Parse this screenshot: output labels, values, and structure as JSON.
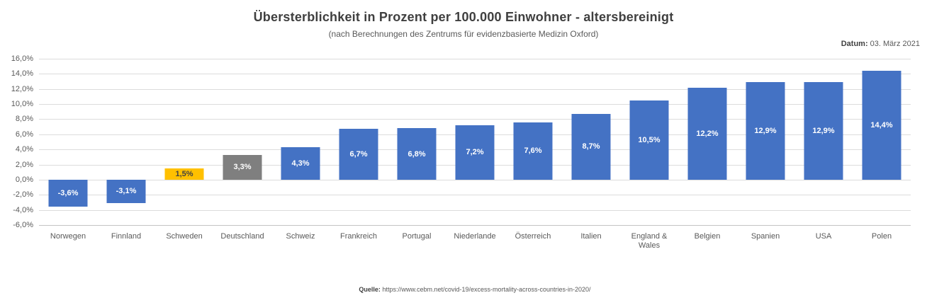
{
  "header": {
    "title": "Übersterblichkeit in Prozent per 100.000 Einwohner - altersbereinigt",
    "subtitle": "(nach Berechnungen des Zentrums für evidenzbasierte Medizin Oxford)",
    "date_label": "Datum:",
    "date_value": "03. März 2021"
  },
  "footer": {
    "source_label": "Quelle:",
    "source_url": "https://www.cebm.net/covid-19/excess-mortality-across-countries-in-2020/"
  },
  "colors": {
    "bar_blue": "#4472C4",
    "bar_yellow": "#FFC000",
    "bar_gray": "#7F7F7F",
    "gridline": "#DCDCDC",
    "axis_text": "#595959"
  },
  "chart_data": {
    "type": "bar",
    "title": "Übersterblichkeit in Prozent per 100.000 Einwohner - altersbereinigt",
    "subtitle": "(nach Berechnungen des Zentrums für evidenzbasierte Medizin Oxford)",
    "xlabel": "",
    "ylabel": "",
    "ylim": [
      -6,
      16
    ],
    "grid": true,
    "legend": false,
    "yticks": [
      {
        "v": 16,
        "label": "16,0%"
      },
      {
        "v": 14,
        "label": "14,0%"
      },
      {
        "v": 12,
        "label": "12,0%"
      },
      {
        "v": 10,
        "label": "10,0%"
      },
      {
        "v": 8,
        "label": "8,0%"
      },
      {
        "v": 6,
        "label": "6,0%"
      },
      {
        "v": 4,
        "label": "4,0%"
      },
      {
        "v": 2,
        "label": "2,0%"
      },
      {
        "v": 0,
        "label": "0,0%"
      },
      {
        "v": -2,
        "label": "-2,0%"
      },
      {
        "v": -4,
        "label": "-4,0%"
      },
      {
        "v": -6,
        "label": "-6,0%"
      }
    ],
    "bars": [
      {
        "category": "Norwegen",
        "value": -3.6,
        "label": "-3,6%",
        "color": "#4472C4",
        "label_color": "#FFFFFF"
      },
      {
        "category": "Finnland",
        "value": -3.1,
        "label": "-3,1%",
        "color": "#4472C4",
        "label_color": "#FFFFFF"
      },
      {
        "category": "Schweden",
        "value": 1.5,
        "label": "1,5%",
        "color": "#FFC000",
        "label_color": "#424242"
      },
      {
        "category": "Deutschland",
        "value": 3.3,
        "label": "3,3%",
        "color": "#7F7F7F",
        "label_color": "#FFFFFF"
      },
      {
        "category": "Schweiz",
        "value": 4.3,
        "label": "4,3%",
        "color": "#4472C4",
        "label_color": "#FFFFFF"
      },
      {
        "category": "Frankreich",
        "value": 6.7,
        "label": "6,7%",
        "color": "#4472C4",
        "label_color": "#FFFFFF"
      },
      {
        "category": "Portugal",
        "value": 6.8,
        "label": "6,8%",
        "color": "#4472C4",
        "label_color": "#FFFFFF"
      },
      {
        "category": "Niederlande",
        "value": 7.2,
        "label": "7,2%",
        "color": "#4472C4",
        "label_color": "#FFFFFF"
      },
      {
        "category": "Österreich",
        "value": 7.6,
        "label": "7,6%",
        "color": "#4472C4",
        "label_color": "#FFFFFF"
      },
      {
        "category": "Italien",
        "value": 8.7,
        "label": "8,7%",
        "color": "#4472C4",
        "label_color": "#FFFFFF"
      },
      {
        "category": "England & Wales",
        "value": 10.5,
        "label": "10,5%",
        "color": "#4472C4",
        "label_color": "#FFFFFF"
      },
      {
        "category": "Belgien",
        "value": 12.2,
        "label": "12,2%",
        "color": "#4472C4",
        "label_color": "#FFFFFF"
      },
      {
        "category": "Spanien",
        "value": 12.9,
        "label": "12,9%",
        "color": "#4472C4",
        "label_color": "#FFFFFF"
      },
      {
        "category": "USA",
        "value": 12.9,
        "label": "12,9%",
        "color": "#4472C4",
        "label_color": "#FFFFFF"
      },
      {
        "category": "Polen",
        "value": 14.4,
        "label": "14,4%",
        "color": "#4472C4",
        "label_color": "#FFFFFF"
      }
    ]
  }
}
